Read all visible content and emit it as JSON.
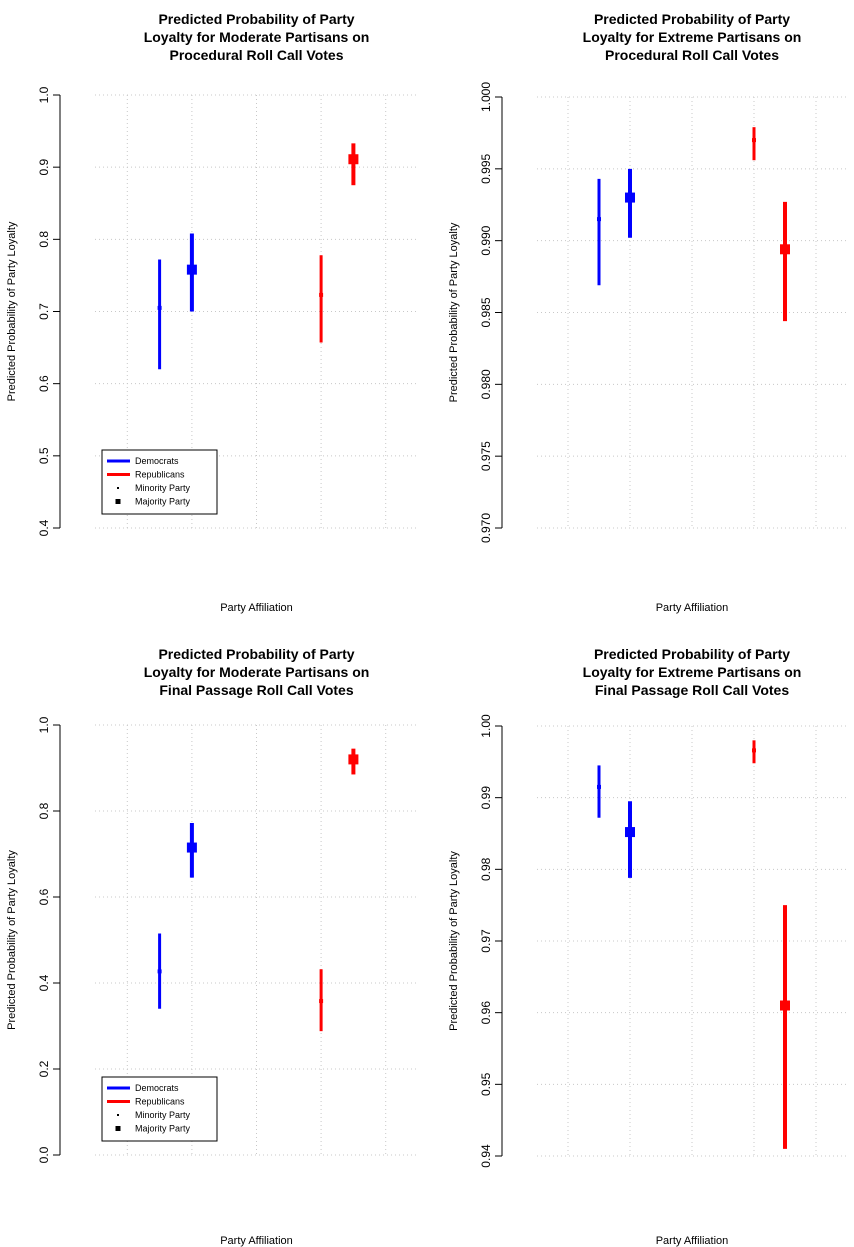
{
  "chart_data": [
    {
      "type": "errorbar",
      "title": [
        "Predicted Probability of Party",
        "Loyalty for Moderate Partisans on",
        "Procedural Roll Call Votes"
      ],
      "xlabel": "Party Affiliation",
      "ylabel": "Predicted Probability of Party Loyalty",
      "ylim": [
        0.4,
        1.0
      ],
      "yticks": [
        0.4,
        0.5,
        0.6,
        0.7,
        0.8,
        0.9,
        1.0
      ],
      "ytick_labels": [
        "0.4",
        "0.5",
        "0.6",
        "0.7",
        "0.8",
        "0.9",
        "1.0"
      ],
      "grid": true,
      "legend": {
        "position": "bottom-left",
        "entries": [
          {
            "label": "Democrats",
            "kind": "line",
            "color": "#0000ff"
          },
          {
            "label": "Republicans",
            "kind": "line",
            "color": "#ff0000"
          },
          {
            "label": "Minority Party",
            "kind": "point-small",
            "color": "#000000"
          },
          {
            "label": "Majority Party",
            "kind": "point-large",
            "color": "#000000"
          }
        ]
      },
      "series": [
        {
          "party": "Democrats",
          "status": "Minority Party",
          "color": "#0000ff",
          "x": 1,
          "estimate": 0.705,
          "lower": 0.62,
          "upper": 0.772
        },
        {
          "party": "Democrats",
          "status": "Majority Party",
          "color": "#0000ff",
          "x": 1.5,
          "estimate": 0.758,
          "lower": 0.7,
          "upper": 0.808
        },
        {
          "party": "Republicans",
          "status": "Minority Party",
          "color": "#ff0000",
          "x": 3.5,
          "estimate": 0.723,
          "lower": 0.657,
          "upper": 0.778
        },
        {
          "party": "Republicans",
          "status": "Majority Party",
          "color": "#ff0000",
          "x": 4,
          "estimate": 0.911,
          "lower": 0.875,
          "upper": 0.933
        }
      ]
    },
    {
      "type": "errorbar",
      "title": [
        "Predicted Probability of Party",
        "Loyalty for Extreme Partisans on",
        "Procedural Roll Call Votes"
      ],
      "xlabel": "Party Affiliation",
      "ylabel": "Predicted Probability of Party Loyalty",
      "ylim": [
        0.97,
        1.0
      ],
      "yticks": [
        0.97,
        0.975,
        0.98,
        0.985,
        0.99,
        0.995,
        1.0
      ],
      "ytick_labels": [
        "0.970",
        "0.975",
        "0.980",
        "0.985",
        "0.990",
        "0.995",
        "1.000"
      ],
      "grid": true,
      "legend": null,
      "series": [
        {
          "party": "Democrats",
          "status": "Minority Party",
          "color": "#0000ff",
          "x": 1,
          "estimate": 0.9915,
          "lower": 0.9869,
          "upper": 0.9943
        },
        {
          "party": "Democrats",
          "status": "Majority Party",
          "color": "#0000ff",
          "x": 1.5,
          "estimate": 0.993,
          "lower": 0.9902,
          "upper": 0.995
        },
        {
          "party": "Republicans",
          "status": "Minority Party",
          "color": "#ff0000",
          "x": 3.5,
          "estimate": 0.997,
          "lower": 0.9956,
          "upper": 0.9979
        },
        {
          "party": "Republicans",
          "status": "Majority Party",
          "color": "#ff0000",
          "x": 4,
          "estimate": 0.9894,
          "lower": 0.9844,
          "upper": 0.9927
        }
      ]
    },
    {
      "type": "errorbar",
      "title": [
        "Predicted Probability of Party",
        "Loyalty for Moderate Partisans on",
        "Final Passage Roll Call Votes"
      ],
      "xlabel": "Party Affiliation",
      "ylabel": "Predicted Probability of Party Loyalty",
      "ylim": [
        0.0,
        1.0
      ],
      "yticks": [
        0.0,
        0.2,
        0.4,
        0.6,
        0.8,
        1.0
      ],
      "ytick_labels": [
        "0.0",
        "0.2",
        "0.4",
        "0.6",
        "0.8",
        "1.0"
      ],
      "grid": true,
      "legend": {
        "position": "bottom-left",
        "entries": [
          {
            "label": "Democrats",
            "kind": "line",
            "color": "#0000ff"
          },
          {
            "label": "Republicans",
            "kind": "line",
            "color": "#ff0000"
          },
          {
            "label": "Minority Party",
            "kind": "point-small",
            "color": "#000000"
          },
          {
            "label": "Majority Party",
            "kind": "point-large",
            "color": "#000000"
          }
        ]
      },
      "series": [
        {
          "party": "Democrats",
          "status": "Minority Party",
          "color": "#0000ff",
          "x": 1,
          "estimate": 0.427,
          "lower": 0.34,
          "upper": 0.515
        },
        {
          "party": "Democrats",
          "status": "Majority Party",
          "color": "#0000ff",
          "x": 1.5,
          "estimate": 0.715,
          "lower": 0.645,
          "upper": 0.772
        },
        {
          "party": "Republicans",
          "status": "Minority Party",
          "color": "#ff0000",
          "x": 3.5,
          "estimate": 0.358,
          "lower": 0.288,
          "upper": 0.432
        },
        {
          "party": "Republicans",
          "status": "Majority Party",
          "color": "#ff0000",
          "x": 4,
          "estimate": 0.92,
          "lower": 0.885,
          "upper": 0.945
        }
      ]
    },
    {
      "type": "errorbar",
      "title": [
        "Predicted Probability of Party",
        "Loyalty for Extreme Partisans on",
        "Final Passage Roll Call Votes"
      ],
      "xlabel": "Party Affiliation",
      "ylabel": "Predicted Probability of Party Loyalty",
      "ylim": [
        0.94,
        1.0
      ],
      "yticks": [
        0.94,
        0.95,
        0.96,
        0.97,
        0.98,
        0.99,
        1.0
      ],
      "ytick_labels": [
        "0.94",
        "0.95",
        "0.96",
        "0.97",
        "0.98",
        "0.99",
        "1.00"
      ],
      "grid": true,
      "legend": null,
      "series": [
        {
          "party": "Democrats",
          "status": "Minority Party",
          "color": "#0000ff",
          "x": 1,
          "estimate": 0.9915,
          "lower": 0.9872,
          "upper": 0.9945
        },
        {
          "party": "Democrats",
          "status": "Majority Party",
          "color": "#0000ff",
          "x": 1.5,
          "estimate": 0.9852,
          "lower": 0.9788,
          "upper": 0.9895
        },
        {
          "party": "Republicans",
          "status": "Minority Party",
          "color": "#ff0000",
          "x": 3.5,
          "estimate": 0.9966,
          "lower": 0.9948,
          "upper": 0.998
        },
        {
          "party": "Republicans",
          "status": "Majority Party",
          "color": "#ff0000",
          "x": 4,
          "estimate": 0.961,
          "lower": 0.941,
          "upper": 0.975
        }
      ]
    }
  ]
}
